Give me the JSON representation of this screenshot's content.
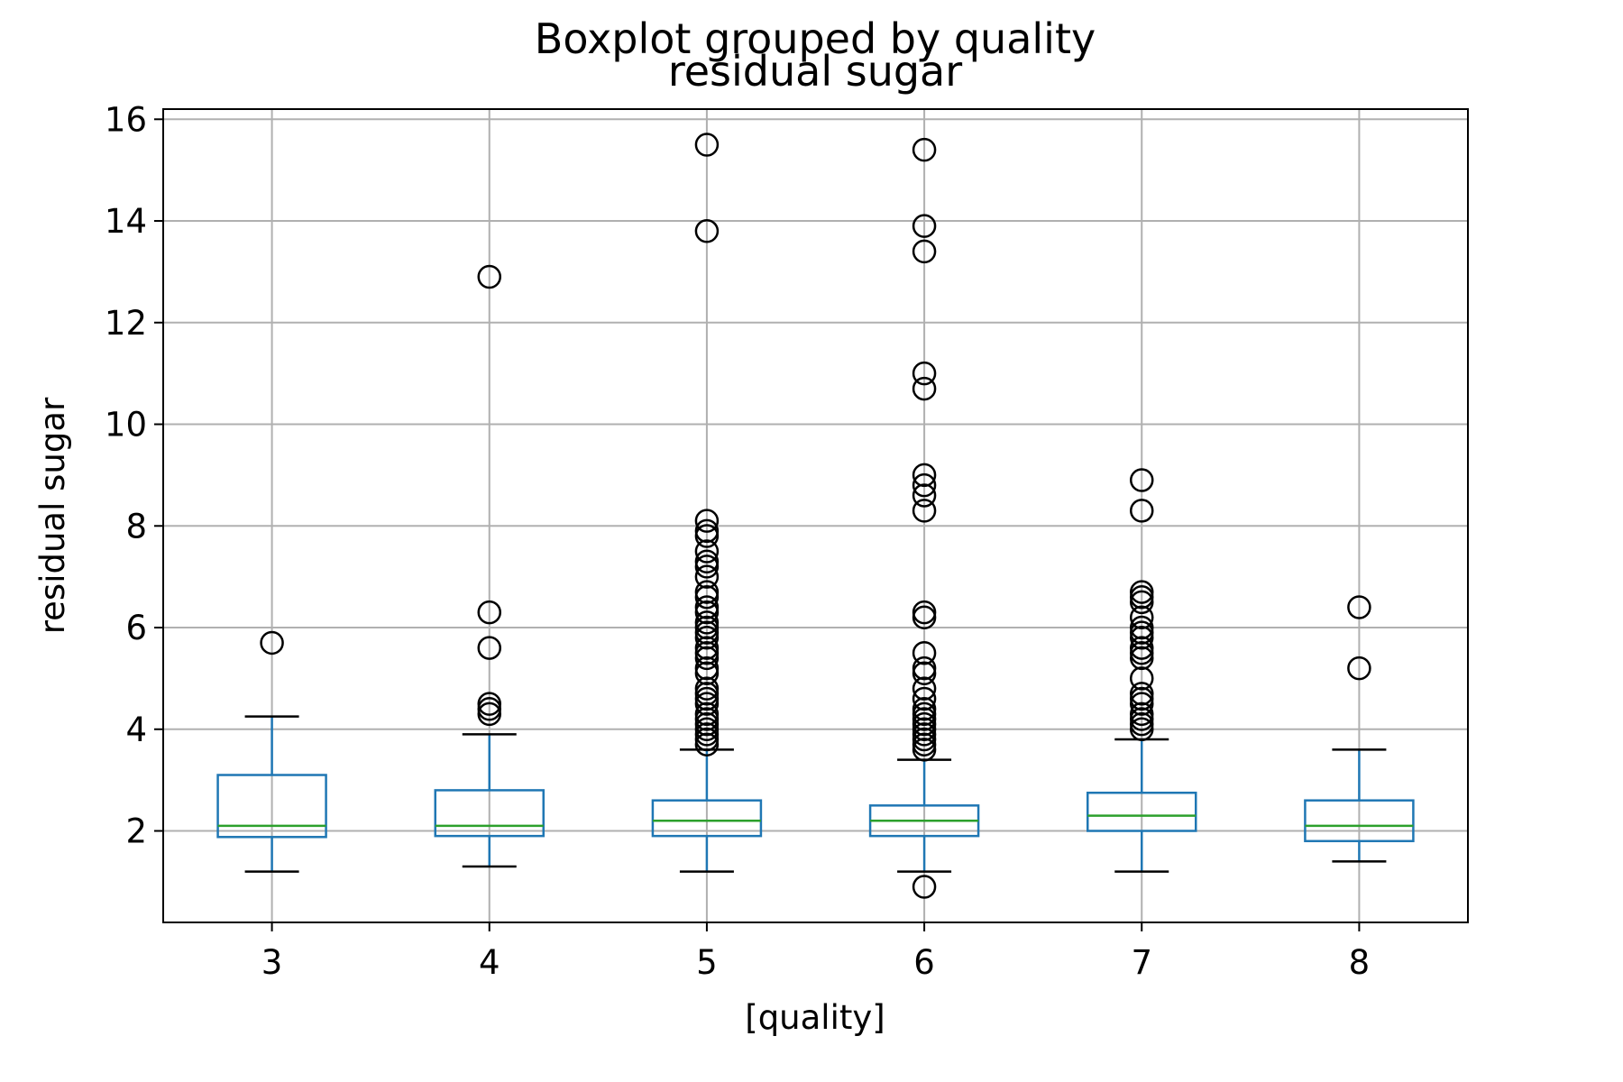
{
  "figure": {
    "suptitle": "Boxplot grouped by quality",
    "title": "residual sugar"
  },
  "chart_data": {
    "type": "boxplot",
    "title": "residual sugar",
    "suptitle": "Boxplot grouped by quality",
    "xlabel": "[quality]",
    "ylabel": "residual sugar",
    "ylim": [
      0.2,
      16.2
    ],
    "yticks": [
      2,
      4,
      6,
      8,
      10,
      12,
      14,
      16
    ],
    "grid": true,
    "categories": [
      "3",
      "4",
      "5",
      "6",
      "7",
      "8"
    ],
    "boxes": [
      {
        "category": "3",
        "whisker_low": 1.2,
        "q1": 1.88,
        "median": 2.1,
        "q3": 3.1,
        "whisker_high": 4.25,
        "outliers": [
          5.7
        ]
      },
      {
        "category": "4",
        "whisker_low": 1.3,
        "q1": 1.9,
        "median": 2.1,
        "q3": 2.8,
        "whisker_high": 3.9,
        "outliers": [
          4.3,
          4.4,
          4.5,
          5.6,
          6.3,
          12.9
        ]
      },
      {
        "category": "5",
        "whisker_low": 1.2,
        "q1": 1.9,
        "median": 2.2,
        "q3": 2.6,
        "whisker_high": 3.6,
        "outliers": [
          3.7,
          3.8,
          3.9,
          4.0,
          4.1,
          4.2,
          4.3,
          4.5,
          4.6,
          4.7,
          4.8,
          5.1,
          5.2,
          5.4,
          5.5,
          5.6,
          5.8,
          5.9,
          6.0,
          6.1,
          6.3,
          6.4,
          6.6,
          6.7,
          7.0,
          7.2,
          7.3,
          7.5,
          7.8,
          7.9,
          8.1,
          13.8,
          15.5
        ]
      },
      {
        "category": "6",
        "whisker_low": 1.2,
        "q1": 1.9,
        "median": 2.2,
        "q3": 2.5,
        "whisker_high": 3.4,
        "outliers": [
          0.9,
          3.6,
          3.7,
          3.8,
          3.9,
          4.0,
          4.1,
          4.2,
          4.3,
          4.4,
          4.6,
          4.8,
          5.1,
          5.2,
          5.5,
          6.2,
          6.3,
          8.3,
          8.6,
          8.8,
          9.0,
          10.7,
          11.0,
          13.4,
          13.9,
          15.4
        ]
      },
      {
        "category": "7",
        "whisker_low": 1.2,
        "q1": 2.0,
        "median": 2.3,
        "q3": 2.75,
        "whisker_high": 3.8,
        "outliers": [
          4.0,
          4.1,
          4.2,
          4.3,
          4.5,
          4.6,
          4.7,
          5.0,
          5.4,
          5.5,
          5.6,
          5.8,
          5.9,
          6.0,
          6.2,
          6.5,
          6.6,
          6.7,
          8.3,
          8.9
        ]
      },
      {
        "category": "8",
        "whisker_low": 1.4,
        "q1": 1.8,
        "median": 2.1,
        "q3": 2.6,
        "whisker_high": 3.6,
        "outliers": [
          5.2,
          6.4
        ]
      }
    ],
    "colors": {
      "box": "#1f77b4",
      "median": "#2ca02c",
      "whisker_cap": "#000000",
      "flier": "#000000",
      "grid": "#b0b0b0"
    }
  }
}
